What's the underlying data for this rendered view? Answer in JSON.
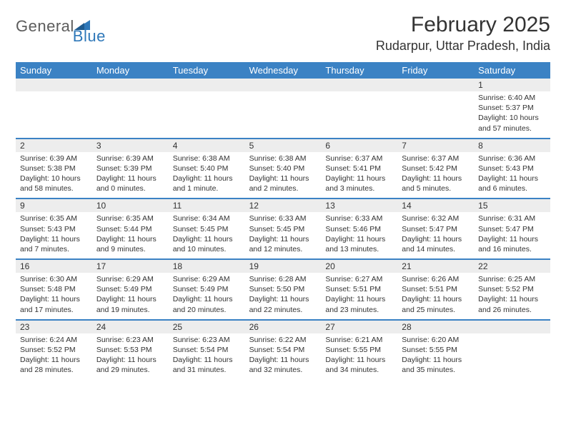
{
  "brand": {
    "general": "General",
    "blue": "Blue"
  },
  "title": "February 2025",
  "location": "Rudarpur, Uttar Pradesh, India",
  "colors": {
    "header_bar": "#3b82c4",
    "row_divider": "#3b82c4",
    "daynum_bg": "#ededed",
    "text": "#333333",
    "logo_gray": "#5c5c5c",
    "logo_blue": "#2f78b9",
    "background": "#ffffff"
  },
  "day_names": [
    "Sunday",
    "Monday",
    "Tuesday",
    "Wednesday",
    "Thursday",
    "Friday",
    "Saturday"
  ],
  "weeks": [
    [
      {
        "n": "",
        "sunrise": "",
        "sunset": "",
        "daylight": ""
      },
      {
        "n": "",
        "sunrise": "",
        "sunset": "",
        "daylight": ""
      },
      {
        "n": "",
        "sunrise": "",
        "sunset": "",
        "daylight": ""
      },
      {
        "n": "",
        "sunrise": "",
        "sunset": "",
        "daylight": ""
      },
      {
        "n": "",
        "sunrise": "",
        "sunset": "",
        "daylight": ""
      },
      {
        "n": "",
        "sunrise": "",
        "sunset": "",
        "daylight": ""
      },
      {
        "n": "1",
        "sunrise": "Sunrise: 6:40 AM",
        "sunset": "Sunset: 5:37 PM",
        "daylight": "Daylight: 10 hours and 57 minutes."
      }
    ],
    [
      {
        "n": "2",
        "sunrise": "Sunrise: 6:39 AM",
        "sunset": "Sunset: 5:38 PM",
        "daylight": "Daylight: 10 hours and 58 minutes."
      },
      {
        "n": "3",
        "sunrise": "Sunrise: 6:39 AM",
        "sunset": "Sunset: 5:39 PM",
        "daylight": "Daylight: 11 hours and 0 minutes."
      },
      {
        "n": "4",
        "sunrise": "Sunrise: 6:38 AM",
        "sunset": "Sunset: 5:40 PM",
        "daylight": "Daylight: 11 hours and 1 minute."
      },
      {
        "n": "5",
        "sunrise": "Sunrise: 6:38 AM",
        "sunset": "Sunset: 5:40 PM",
        "daylight": "Daylight: 11 hours and 2 minutes."
      },
      {
        "n": "6",
        "sunrise": "Sunrise: 6:37 AM",
        "sunset": "Sunset: 5:41 PM",
        "daylight": "Daylight: 11 hours and 3 minutes."
      },
      {
        "n": "7",
        "sunrise": "Sunrise: 6:37 AM",
        "sunset": "Sunset: 5:42 PM",
        "daylight": "Daylight: 11 hours and 5 minutes."
      },
      {
        "n": "8",
        "sunrise": "Sunrise: 6:36 AM",
        "sunset": "Sunset: 5:43 PM",
        "daylight": "Daylight: 11 hours and 6 minutes."
      }
    ],
    [
      {
        "n": "9",
        "sunrise": "Sunrise: 6:35 AM",
        "sunset": "Sunset: 5:43 PM",
        "daylight": "Daylight: 11 hours and 7 minutes."
      },
      {
        "n": "10",
        "sunrise": "Sunrise: 6:35 AM",
        "sunset": "Sunset: 5:44 PM",
        "daylight": "Daylight: 11 hours and 9 minutes."
      },
      {
        "n": "11",
        "sunrise": "Sunrise: 6:34 AM",
        "sunset": "Sunset: 5:45 PM",
        "daylight": "Daylight: 11 hours and 10 minutes."
      },
      {
        "n": "12",
        "sunrise": "Sunrise: 6:33 AM",
        "sunset": "Sunset: 5:45 PM",
        "daylight": "Daylight: 11 hours and 12 minutes."
      },
      {
        "n": "13",
        "sunrise": "Sunrise: 6:33 AM",
        "sunset": "Sunset: 5:46 PM",
        "daylight": "Daylight: 11 hours and 13 minutes."
      },
      {
        "n": "14",
        "sunrise": "Sunrise: 6:32 AM",
        "sunset": "Sunset: 5:47 PM",
        "daylight": "Daylight: 11 hours and 14 minutes."
      },
      {
        "n": "15",
        "sunrise": "Sunrise: 6:31 AM",
        "sunset": "Sunset: 5:47 PM",
        "daylight": "Daylight: 11 hours and 16 minutes."
      }
    ],
    [
      {
        "n": "16",
        "sunrise": "Sunrise: 6:30 AM",
        "sunset": "Sunset: 5:48 PM",
        "daylight": "Daylight: 11 hours and 17 minutes."
      },
      {
        "n": "17",
        "sunrise": "Sunrise: 6:29 AM",
        "sunset": "Sunset: 5:49 PM",
        "daylight": "Daylight: 11 hours and 19 minutes."
      },
      {
        "n": "18",
        "sunrise": "Sunrise: 6:29 AM",
        "sunset": "Sunset: 5:49 PM",
        "daylight": "Daylight: 11 hours and 20 minutes."
      },
      {
        "n": "19",
        "sunrise": "Sunrise: 6:28 AM",
        "sunset": "Sunset: 5:50 PM",
        "daylight": "Daylight: 11 hours and 22 minutes."
      },
      {
        "n": "20",
        "sunrise": "Sunrise: 6:27 AM",
        "sunset": "Sunset: 5:51 PM",
        "daylight": "Daylight: 11 hours and 23 minutes."
      },
      {
        "n": "21",
        "sunrise": "Sunrise: 6:26 AM",
        "sunset": "Sunset: 5:51 PM",
        "daylight": "Daylight: 11 hours and 25 minutes."
      },
      {
        "n": "22",
        "sunrise": "Sunrise: 6:25 AM",
        "sunset": "Sunset: 5:52 PM",
        "daylight": "Daylight: 11 hours and 26 minutes."
      }
    ],
    [
      {
        "n": "23",
        "sunrise": "Sunrise: 6:24 AM",
        "sunset": "Sunset: 5:52 PM",
        "daylight": "Daylight: 11 hours and 28 minutes."
      },
      {
        "n": "24",
        "sunrise": "Sunrise: 6:23 AM",
        "sunset": "Sunset: 5:53 PM",
        "daylight": "Daylight: 11 hours and 29 minutes."
      },
      {
        "n": "25",
        "sunrise": "Sunrise: 6:23 AM",
        "sunset": "Sunset: 5:54 PM",
        "daylight": "Daylight: 11 hours and 31 minutes."
      },
      {
        "n": "26",
        "sunrise": "Sunrise: 6:22 AM",
        "sunset": "Sunset: 5:54 PM",
        "daylight": "Daylight: 11 hours and 32 minutes."
      },
      {
        "n": "27",
        "sunrise": "Sunrise: 6:21 AM",
        "sunset": "Sunset: 5:55 PM",
        "daylight": "Daylight: 11 hours and 34 minutes."
      },
      {
        "n": "28",
        "sunrise": "Sunrise: 6:20 AM",
        "sunset": "Sunset: 5:55 PM",
        "daylight": "Daylight: 11 hours and 35 minutes."
      },
      {
        "n": "",
        "sunrise": "",
        "sunset": "",
        "daylight": ""
      }
    ]
  ]
}
